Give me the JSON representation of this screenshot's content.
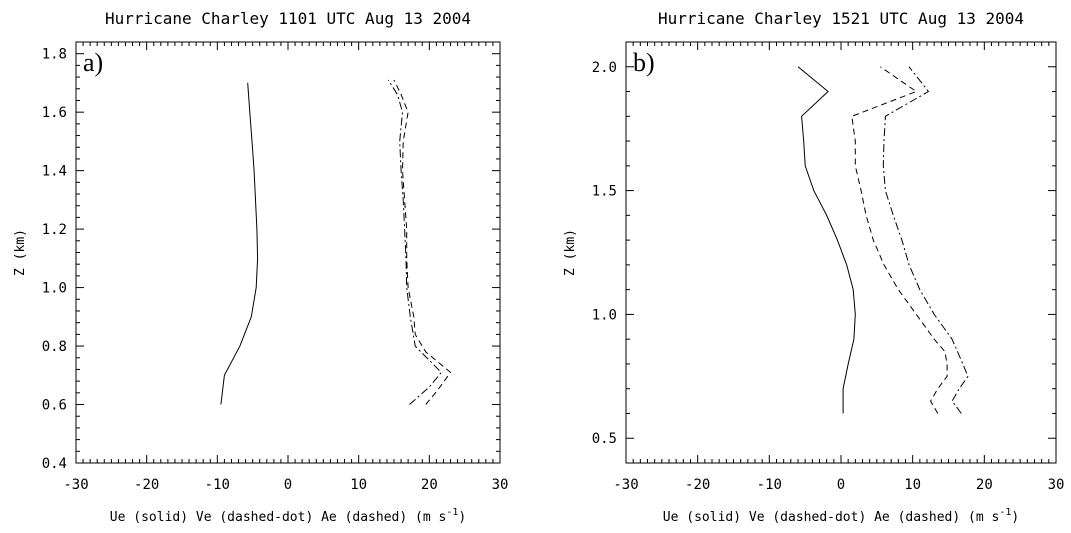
{
  "chart_data": [
    {
      "type": "line",
      "panel_label": "a)",
      "title": "Hurricane Charley 1101 UTC Aug 13 2004",
      "xlabel": "Ue (solid)  Ve (dashed-dot)  Ae (dashed)   (m s",
      "xlabel_sup": "-1",
      "xlabel_close": ")",
      "ylabel": "Z (km)",
      "xlim": [
        -30,
        30
      ],
      "ylim": [
        0.4,
        1.84
      ],
      "xticks": [
        -30,
        -20,
        -10,
        0,
        10,
        20,
        30
      ],
      "yticks": [
        0.4,
        0.6,
        0.8,
        1.0,
        1.2,
        1.4,
        1.6,
        1.8
      ],
      "ytick_labels": [
        "0.4",
        "0.6",
        "0.8",
        "1.0",
        "1.2",
        "1.4",
        "1.6",
        "1.8"
      ],
      "series": [
        {
          "name": "Ue",
          "style": "solid",
          "points": [
            [
              -9.5,
              0.6
            ],
            [
              -9.0,
              0.7
            ],
            [
              -6.8,
              0.8
            ],
            [
              -5.2,
              0.9
            ],
            [
              -4.5,
              1.0
            ],
            [
              -4.3,
              1.1
            ],
            [
              -4.4,
              1.2
            ],
            [
              -4.6,
              1.3
            ],
            [
              -4.8,
              1.4
            ],
            [
              -5.1,
              1.5
            ],
            [
              -5.4,
              1.6
            ],
            [
              -5.7,
              1.7
            ]
          ]
        },
        {
          "name": "Ve",
          "style": "dashed-dot",
          "points": [
            [
              17.2,
              0.6
            ],
            [
              20.0,
              0.66
            ],
            [
              21.7,
              0.71
            ],
            [
              18.0,
              0.8
            ],
            [
              17.3,
              0.9
            ],
            [
              16.8,
              1.0
            ],
            [
              16.7,
              1.1
            ],
            [
              16.5,
              1.2
            ],
            [
              16.3,
              1.3
            ],
            [
              16.0,
              1.4
            ],
            [
              15.8,
              1.5
            ],
            [
              16.2,
              1.6
            ],
            [
              15.5,
              1.66
            ],
            [
              14.2,
              1.71
            ]
          ]
        },
        {
          "name": "Ae",
          "style": "dashed",
          "points": [
            [
              19.5,
              0.6
            ],
            [
              21.2,
              0.65
            ],
            [
              23.0,
              0.71
            ],
            [
              19.5,
              0.78
            ],
            [
              18.0,
              0.84
            ],
            [
              17.8,
              0.9
            ],
            [
              17.0,
              1.0
            ],
            [
              16.8,
              1.1
            ],
            [
              16.8,
              1.2
            ],
            [
              16.5,
              1.3
            ],
            [
              16.2,
              1.4
            ],
            [
              16.3,
              1.5
            ],
            [
              17.0,
              1.6
            ],
            [
              16.0,
              1.66
            ],
            [
              15.0,
              1.71
            ]
          ]
        }
      ]
    },
    {
      "type": "line",
      "panel_label": "b)",
      "title": "Hurricane Charley 1521 UTC Aug 13 2004",
      "xlabel": "Ue (solid)  Ve (dashed-dot)  Ae (dashed)   (m s",
      "xlabel_sup": "-1",
      "xlabel_close": ")",
      "ylabel": "Z (km)",
      "xlim": [
        -30,
        30
      ],
      "ylim": [
        0.4,
        2.1
      ],
      "xticks": [
        -30,
        -20,
        -10,
        0,
        10,
        20,
        30
      ],
      "yticks": [
        0.5,
        1.0,
        1.5,
        2.0
      ],
      "ytick_labels": [
        "0.5",
        "1.0",
        "1.5",
        "2.0"
      ],
      "series": [
        {
          "name": "Ue",
          "style": "solid",
          "points": [
            [
              0.3,
              0.6
            ],
            [
              0.3,
              0.7
            ],
            [
              1.0,
              0.8
            ],
            [
              1.8,
              0.9
            ],
            [
              2.0,
              1.0
            ],
            [
              1.7,
              1.1
            ],
            [
              0.8,
              1.2
            ],
            [
              -0.5,
              1.3
            ],
            [
              -2.0,
              1.4
            ],
            [
              -3.8,
              1.5
            ],
            [
              -5.0,
              1.6
            ],
            [
              -5.2,
              1.7
            ],
            [
              -5.5,
              1.8
            ],
            [
              -1.8,
              1.9
            ],
            [
              -6.0,
              2.0
            ]
          ]
        },
        {
          "name": "Ve",
          "style": "dashed-dot",
          "points": [
            [
              16.8,
              0.6
            ],
            [
              15.5,
              0.65
            ],
            [
              16.5,
              0.7
            ],
            [
              17.7,
              0.75
            ],
            [
              17.0,
              0.8
            ],
            [
              15.5,
              0.9
            ],
            [
              13.0,
              1.0
            ],
            [
              11.0,
              1.1
            ],
            [
              9.5,
              1.2
            ],
            [
              8.5,
              1.3
            ],
            [
              7.3,
              1.4
            ],
            [
              6.2,
              1.5
            ],
            [
              5.9,
              1.6
            ],
            [
              6.0,
              1.7
            ],
            [
              6.2,
              1.8
            ],
            [
              12.2,
              1.9
            ],
            [
              9.5,
              2.0
            ]
          ]
        },
        {
          "name": "Ae",
          "style": "dashed",
          "points": [
            [
              13.5,
              0.6
            ],
            [
              12.5,
              0.65
            ],
            [
              13.5,
              0.7
            ],
            [
              14.8,
              0.75
            ],
            [
              14.8,
              0.8
            ],
            [
              14.5,
              0.85
            ],
            [
              13.0,
              0.9
            ],
            [
              10.5,
              1.0
            ],
            [
              8.0,
              1.1
            ],
            [
              6.0,
              1.2
            ],
            [
              4.5,
              1.3
            ],
            [
              3.5,
              1.4
            ],
            [
              2.8,
              1.5
            ],
            [
              2.0,
              1.6
            ],
            [
              2.0,
              1.7
            ],
            [
              1.5,
              1.8
            ],
            [
              10.5,
              1.9
            ],
            [
              5.5,
              2.0
            ]
          ]
        }
      ]
    }
  ]
}
